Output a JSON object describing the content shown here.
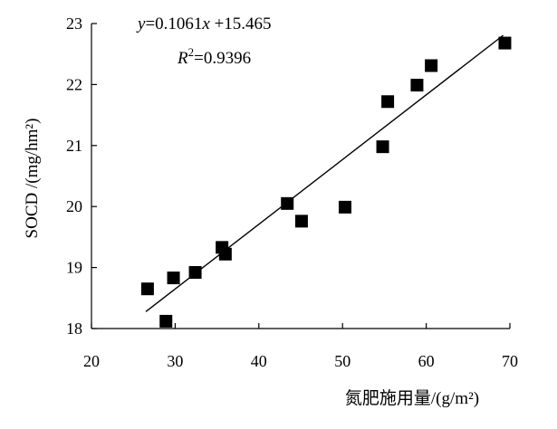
{
  "chart_data": {
    "type": "scatter",
    "title": "",
    "xlabel": "氮肥施用量/(g/m²)",
    "ylabel": "SOCD /(mg/hm²)",
    "xlim": [
      20,
      70
    ],
    "ylim": [
      18,
      23
    ],
    "xticks": [
      "20",
      "30",
      "40",
      "50",
      "60",
      "70"
    ],
    "yticks": [
      "18",
      "19",
      "20",
      "21",
      "22",
      "23"
    ],
    "grid": false,
    "series": [
      {
        "points": [
          {
            "x": 26.7,
            "y": 18.65
          },
          {
            "x": 28.9,
            "y": 18.12
          },
          {
            "x": 29.8,
            "y": 18.83
          },
          {
            "x": 32.4,
            "y": 18.92
          },
          {
            "x": 35.6,
            "y": 19.33
          },
          {
            "x": 36.0,
            "y": 19.22
          },
          {
            "x": 43.4,
            "y": 20.05
          },
          {
            "x": 45.1,
            "y": 19.76
          },
          {
            "x": 50.3,
            "y": 19.99
          },
          {
            "x": 54.8,
            "y": 20.98
          },
          {
            "x": 55.4,
            "y": 21.72
          },
          {
            "x": 58.9,
            "y": 21.99
          },
          {
            "x": 60.6,
            "y": 22.31
          },
          {
            "x": 69.4,
            "y": 22.68
          }
        ],
        "marker": "square",
        "color": "#000000"
      }
    ],
    "trendline": {
      "slope": 0.1061,
      "intercept": 15.465,
      "x_range": [
        26.5,
        69.2
      ],
      "equation_label": {
        "y": "y",
        "eq1": "=0.1061",
        "x": "x",
        "eq2": " +15.465"
      },
      "r2_label": {
        "r": "R",
        "sup": "2",
        "value": "=0.9396"
      }
    }
  }
}
